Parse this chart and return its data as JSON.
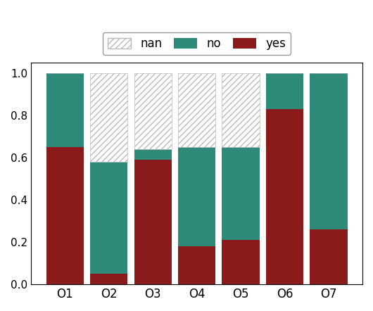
{
  "categories": [
    "O1",
    "O2",
    "O3",
    "O4",
    "O5",
    "O6",
    "O7"
  ],
  "yes": [
    0.65,
    0.05,
    0.59,
    0.18,
    0.21,
    0.83,
    0.26
  ],
  "no": [
    0.35,
    0.53,
    0.05,
    0.47,
    0.44,
    0.17,
    0.74
  ],
  "nan": [
    0.0,
    0.42,
    0.36,
    0.35,
    0.35,
    0.0,
    0.0
  ],
  "color_yes": "#8B1A1A",
  "color_no": "#2E8B7A",
  "hatch_nan": "////",
  "ylim": [
    0,
    1.05
  ],
  "yticks": [
    0,
    0.2,
    0.4,
    0.6,
    0.8,
    1.0
  ],
  "legend_labels": [
    "nan",
    "no",
    "yes"
  ]
}
